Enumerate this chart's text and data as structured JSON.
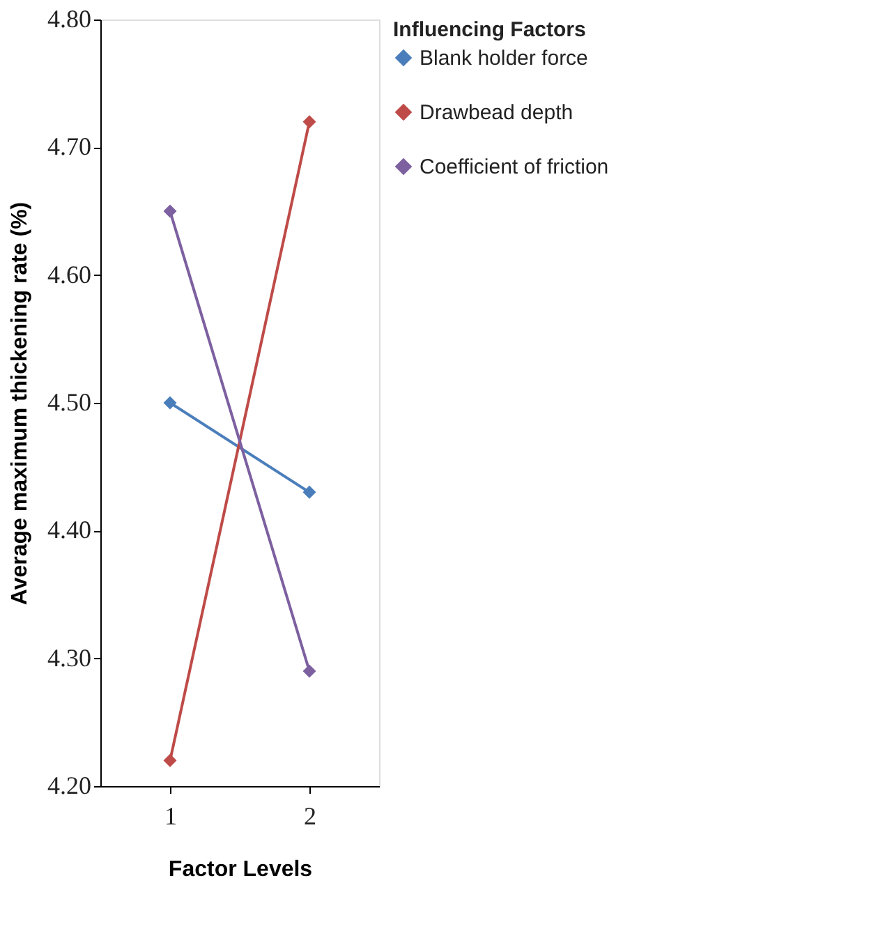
{
  "chart_data": {
    "type": "line",
    "xlabel": "Factor Levels",
    "ylabel": "Average maximum thickening rate (%)",
    "legend_title": "Influencing Factors",
    "categories": [
      "1",
      "2"
    ],
    "series": [
      {
        "name": "Blank holder force",
        "color": "#4a7ebb",
        "values": [
          4.5,
          4.43
        ]
      },
      {
        "name": "Drawbead depth",
        "color": "#be4b48",
        "values": [
          4.22,
          4.72
        ]
      },
      {
        "name": "Coefficient of friction",
        "color": "#7d60a0",
        "values": [
          4.65,
          4.29
        ]
      }
    ],
    "ylim": [
      4.2,
      4.8
    ],
    "yticks": [
      {
        "value": 4.2,
        "label": "4.20"
      },
      {
        "value": 4.3,
        "label": "4.30"
      },
      {
        "value": 4.4,
        "label": "4.40"
      },
      {
        "value": 4.5,
        "label": "4.50"
      },
      {
        "value": 4.6,
        "label": "4.60"
      },
      {
        "value": 4.7,
        "label": "4.70"
      },
      {
        "value": 4.8,
        "label": "4.80"
      }
    ],
    "grid": false,
    "legend": "right",
    "marker": "diamond",
    "line_style": "solid"
  }
}
